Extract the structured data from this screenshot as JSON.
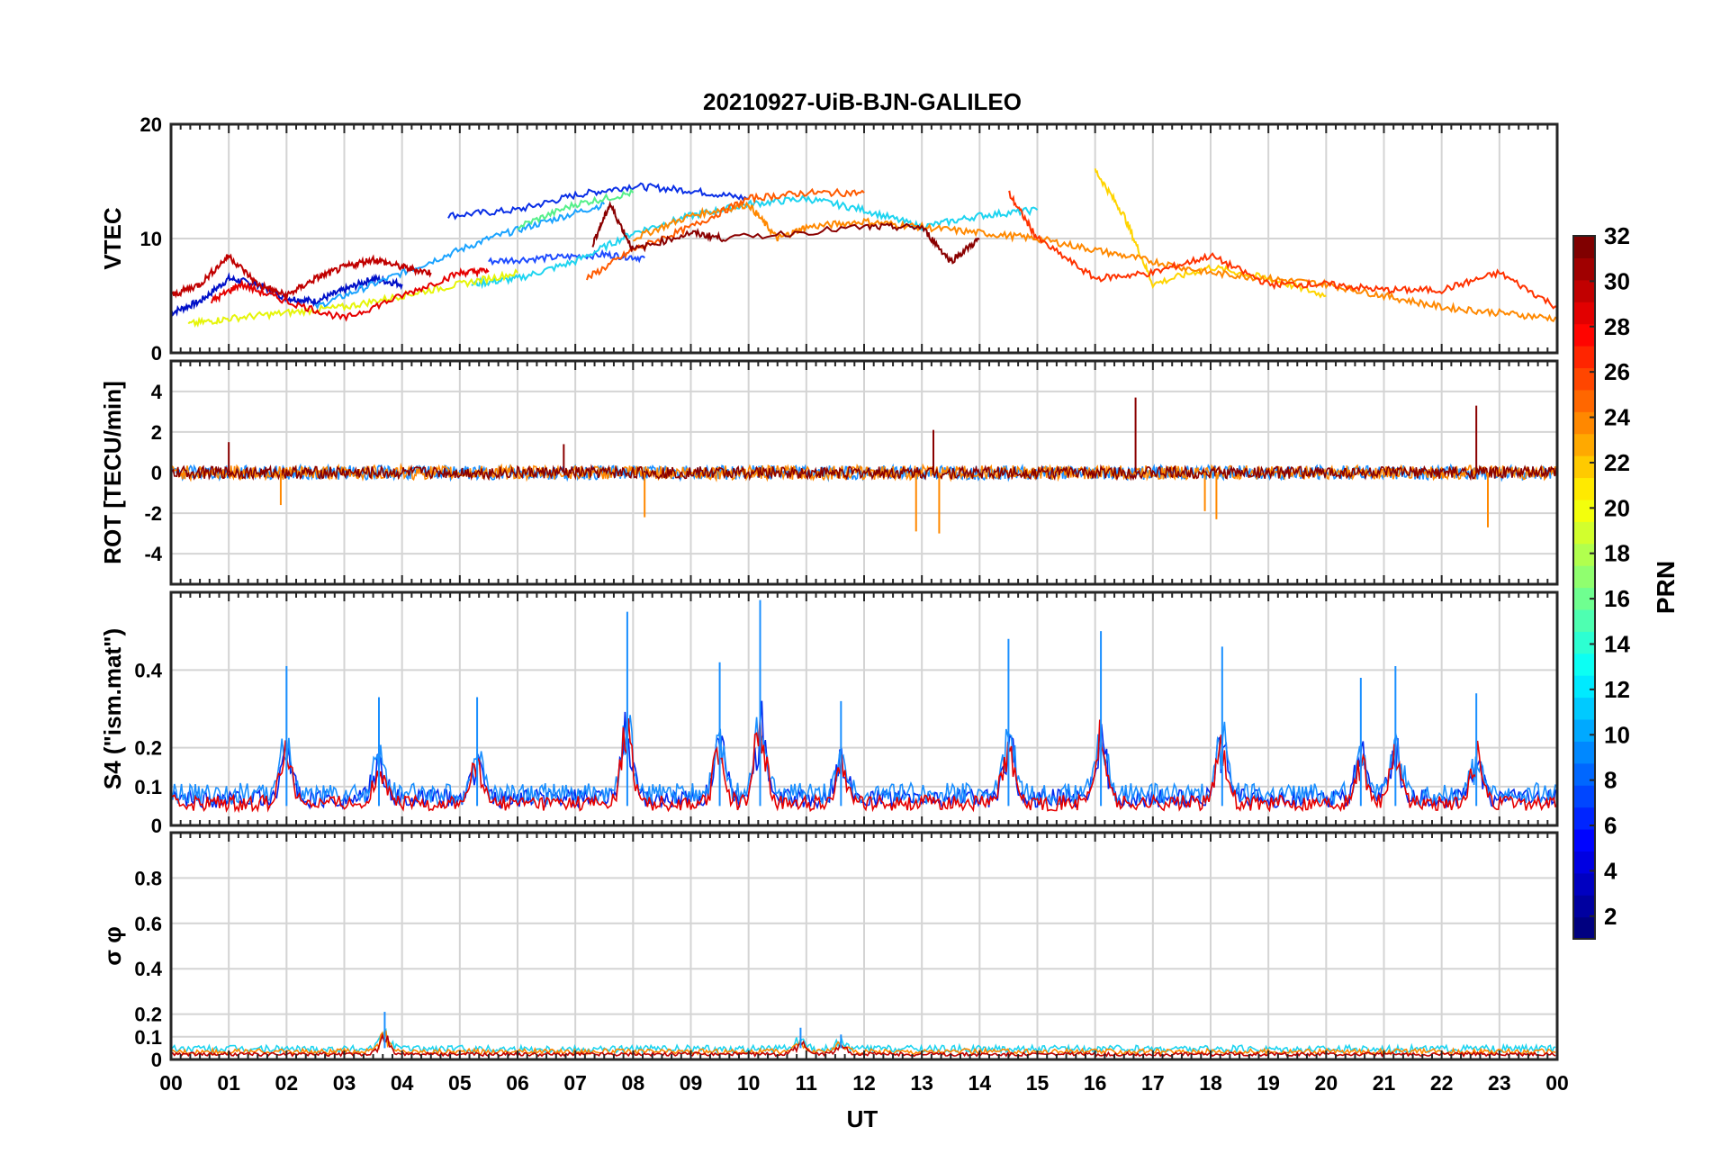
{
  "title": "20210927-UiB-BJN-GALILEO",
  "x_label": "UT",
  "colorbar": {
    "label": "PRN",
    "ticks": [
      "2",
      "4",
      "6",
      "8",
      "10",
      "12",
      "14",
      "16",
      "18",
      "20",
      "22",
      "24",
      "26",
      "28",
      "30",
      "32"
    ],
    "range": [
      1,
      32
    ],
    "colormap": "jet"
  },
  "chart_data": [
    {
      "id": "vtec",
      "type": "line",
      "ylabel": "VTEC",
      "ylim": [
        0,
        20
      ],
      "y_ticks": [
        "0",
        "10",
        "20"
      ],
      "x_ticks": [
        "00",
        "01",
        "02",
        "03",
        "04",
        "05",
        "06",
        "07",
        "08",
        "09",
        "10",
        "11",
        "12",
        "13",
        "14",
        "15",
        "16",
        "17",
        "18",
        "19",
        "20",
        "21",
        "22",
        "23",
        "00"
      ],
      "x_range": [
        0,
        24
      ],
      "grid": true,
      "series": [
        {
          "prn": 2,
          "color": "#0010c8",
          "x": [
            0,
            0.5,
            1,
            1.5,
            2,
            2.5,
            3,
            3.5,
            4
          ],
          "y": [
            3.5,
            4.5,
            6.5,
            6.0,
            4.8,
            4.5,
            5.5,
            6.5,
            6.0
          ]
        },
        {
          "prn": 3,
          "color": "#0a2fe6",
          "x": [
            4.8,
            6,
            7,
            8,
            9,
            10
          ],
          "y": [
            12,
            12.5,
            13.8,
            14.6,
            14.2,
            13.5
          ]
        },
        {
          "prn": 5,
          "color": "#1e4cff",
          "x": [
            5.5,
            6.5,
            7.5,
            8.2
          ],
          "y": [
            8,
            8.3,
            8.6,
            8.3
          ]
        },
        {
          "prn": 9,
          "color": "#1aa3ff",
          "x": [
            2.5,
            3.5,
            4.5,
            5.5,
            6.5,
            7.5
          ],
          "y": [
            4,
            6,
            8,
            10,
            11.5,
            13
          ]
        },
        {
          "prn": 12,
          "color": "#1ed4f0",
          "x": [
            5.2,
            6,
            7,
            8,
            9,
            10,
            11,
            12,
            13,
            14,
            15
          ],
          "y": [
            6,
            6.5,
            8,
            10.5,
            12,
            13,
            13.5,
            12.5,
            11,
            12,
            12.5
          ]
        },
        {
          "prn": 14,
          "color": "#55f08a",
          "x": [
            6,
            7,
            8
          ],
          "y": [
            11,
            13,
            14
          ]
        },
        {
          "prn": 19,
          "color": "#e6f50a",
          "x": [
            0.3,
            1,
            2,
            3,
            4,
            5,
            6
          ],
          "y": [
            2.5,
            3,
            3.5,
            4,
            5,
            6,
            7
          ]
        },
        {
          "prn": 20,
          "color": "#ffd400",
          "x": [
            16,
            16.5,
            17,
            18,
            19,
            20
          ],
          "y": [
            16,
            12,
            6,
            7.5,
            6.5,
            5
          ]
        },
        {
          "prn": 23,
          "color": "#ff8800",
          "x": [
            8,
            9,
            10,
            10.5,
            11,
            12,
            13,
            14,
            15,
            16,
            17,
            18,
            19,
            20,
            21,
            22,
            23,
            24
          ],
          "y": [
            10,
            12,
            13,
            10,
            11,
            11.5,
            11,
            10.5,
            10,
            9,
            8,
            7,
            6.5,
            6,
            5,
            4,
            3.5,
            3
          ]
        },
        {
          "prn": 25,
          "color": "#ff5a00",
          "x": [
            7.2,
            8,
            9,
            10,
            11,
            12
          ],
          "y": [
            6.5,
            9,
            11,
            13.5,
            14,
            14
          ]
        },
        {
          "prn": 26,
          "color": "#ff3200",
          "x": [
            14.5,
            15,
            16,
            17,
            18,
            19,
            20,
            21,
            22,
            23,
            24
          ],
          "y": [
            14,
            10,
            6.5,
            7,
            8.5,
            6,
            6,
            5.5,
            5.5,
            7,
            4
          ]
        },
        {
          "prn": 29,
          "color": "#e60000",
          "x": [
            0.7,
            1.2,
            2,
            3,
            4,
            5,
            5.5
          ],
          "y": [
            4.5,
            6,
            4.5,
            3,
            5,
            7,
            7.2
          ]
        },
        {
          "prn": 31,
          "color": "#c00000",
          "x": [
            0,
            0.5,
            1,
            1.5,
            2,
            2.5,
            3,
            3.5,
            4,
            4.5
          ],
          "y": [
            5,
            6,
            8.5,
            6,
            5,
            6.5,
            7.5,
            8.2,
            7.5,
            7
          ]
        },
        {
          "prn": 32,
          "color": "#8a0000",
          "x": [
            7.3,
            7.6,
            8,
            9,
            9.6,
            12,
            13,
            13.5,
            14
          ],
          "y": [
            9.5,
            13,
            9,
            10.5,
            10,
            11,
            11,
            8,
            10
          ]
        }
      ]
    },
    {
      "id": "rot",
      "type": "line",
      "ylabel": "ROT [TECU/min]",
      "ylim": [
        -5.5,
        5.5
      ],
      "y_ticks": [
        "-4",
        "-2",
        "0",
        "2",
        "4"
      ],
      "x_range": [
        0,
        24
      ],
      "grid": true,
      "series": [
        {
          "prn": 10,
          "color": "#1a8fff",
          "noise": 0.35
        },
        {
          "prn": 23,
          "color": "#ff8800",
          "noise": 0.35
        },
        {
          "prn": 32,
          "color": "#8a0000",
          "noise": 0.3
        }
      ],
      "spikes": [
        {
          "x": 1.0,
          "y": 1.5
        },
        {
          "x": 1.9,
          "y": -1.6
        },
        {
          "x": 6.8,
          "y": 1.4
        },
        {
          "x": 8.2,
          "y": -2.2
        },
        {
          "x": 12.9,
          "y": -2.9
        },
        {
          "x": 13.3,
          "y": -3.0
        },
        {
          "x": 13.2,
          "y": 2.1
        },
        {
          "x": 16.7,
          "y": 3.7
        },
        {
          "x": 17.9,
          "y": -1.9
        },
        {
          "x": 18.1,
          "y": -2.3
        },
        {
          "x": 22.6,
          "y": 3.3
        },
        {
          "x": 22.8,
          "y": -2.7
        }
      ]
    },
    {
      "id": "s4",
      "type": "line",
      "ylabel": "S4 (\"ism.mat\")",
      "ylim": [
        0,
        0.6
      ],
      "y_ticks": [
        "0",
        "0.1",
        "0.2",
        "0.4"
      ],
      "x_range": [
        0,
        24
      ],
      "grid": true,
      "series": [
        {
          "prn": 4,
          "color": "#0028f0",
          "base": 0.06
        },
        {
          "prn": 10,
          "color": "#1a8fff",
          "base": 0.07
        },
        {
          "prn": 29,
          "color": "#e60000",
          "base": 0.05
        }
      ],
      "peaks": [
        {
          "x": 2.0,
          "y": 0.41
        },
        {
          "x": 3.6,
          "y": 0.33
        },
        {
          "x": 5.3,
          "y": 0.33
        },
        {
          "x": 7.9,
          "y": 0.55
        },
        {
          "x": 9.5,
          "y": 0.42
        },
        {
          "x": 10.2,
          "y": 0.58
        },
        {
          "x": 11.6,
          "y": 0.32
        },
        {
          "x": 14.5,
          "y": 0.48
        },
        {
          "x": 16.1,
          "y": 0.5
        },
        {
          "x": 18.2,
          "y": 0.46
        },
        {
          "x": 20.6,
          "y": 0.38
        },
        {
          "x": 21.2,
          "y": 0.41
        },
        {
          "x": 22.6,
          "y": 0.34
        }
      ]
    },
    {
      "id": "sigma_phi",
      "type": "line",
      "ylabel": "σ φ",
      "ylim": [
        0,
        1
      ],
      "y_ticks": [
        "0",
        "0.1",
        "0.2",
        "0.4",
        "0.6",
        "0.8"
      ],
      "x_range": [
        0,
        24
      ],
      "grid": true,
      "series": [
        {
          "prn": 12,
          "color": "#1ed4f0",
          "base": 0.04
        },
        {
          "prn": 23,
          "color": "#ff8800",
          "base": 0.03
        },
        {
          "prn": 31,
          "color": "#c00000",
          "base": 0.02
        }
      ],
      "peaks": [
        {
          "x": 3.7,
          "y": 0.21
        },
        {
          "x": 10.9,
          "y": 0.14
        },
        {
          "x": 11.6,
          "y": 0.11
        }
      ]
    }
  ]
}
